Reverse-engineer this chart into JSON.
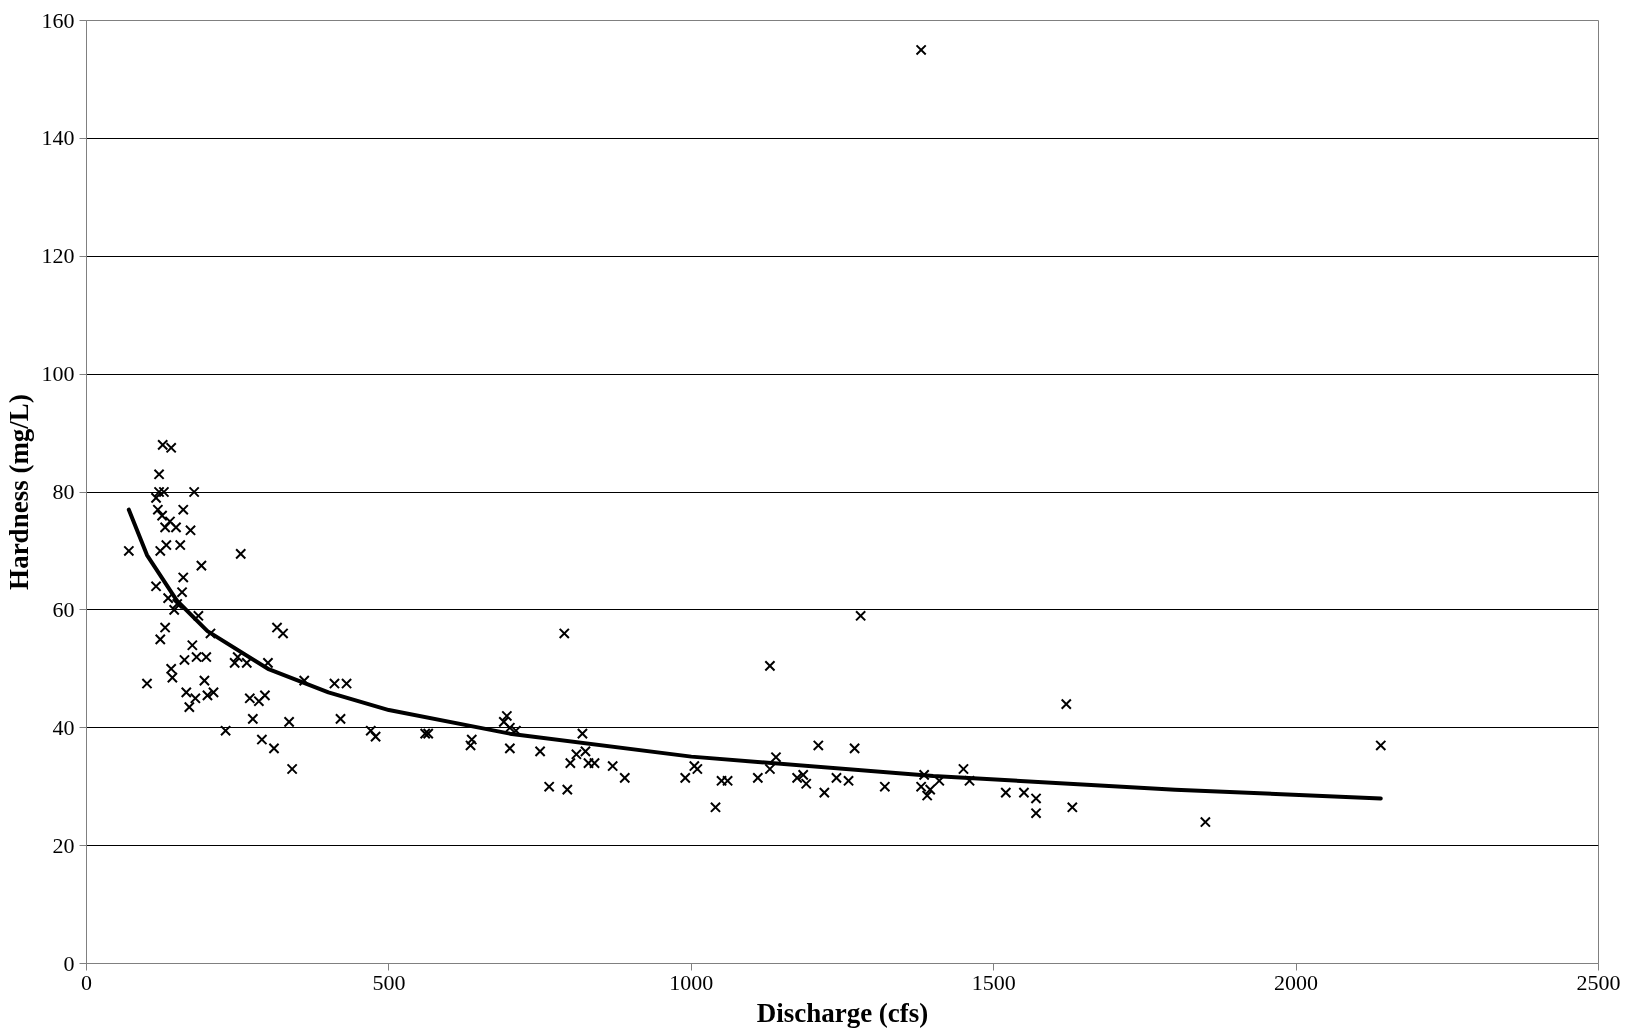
{
  "chart_data": {
    "type": "scatter",
    "xlabel": "Discharge (cfs)",
    "ylabel": "Hardness (mg/L)",
    "xlim": [
      0,
      2500
    ],
    "xticks": [
      0,
      500,
      1000,
      1500,
      2000,
      2500
    ],
    "ylim": [
      0,
      160
    ],
    "yticks": [
      0,
      20,
      40,
      60,
      80,
      100,
      120,
      140,
      160
    ],
    "grid": "y",
    "series": [
      {
        "color": "#000000",
        "marker": "cross",
        "x": [
          70,
          100,
          115,
          115,
          118,
          120,
          120,
          122,
          122,
          125,
          126,
          128,
          130,
          130,
          132,
          135,
          138,
          140,
          140,
          142,
          145,
          148,
          150,
          155,
          158,
          160,
          160,
          162,
          165,
          170,
          172,
          175,
          178,
          180,
          182,
          185,
          190,
          195,
          198,
          200,
          205,
          210,
          230,
          245,
          250,
          255,
          265,
          270,
          275,
          285,
          290,
          295,
          300,
          310,
          315,
          325,
          335,
          340,
          360,
          410,
          420,
          430,
          470,
          478,
          560,
          565,
          635,
          637,
          690,
          695,
          700,
          700,
          710,
          750,
          765,
          790,
          795,
          800,
          810,
          820,
          825,
          830,
          840,
          870,
          890,
          990,
          1005,
          1010,
          1040,
          1050,
          1060,
          1110,
          1130,
          1130,
          1140,
          1175,
          1185,
          1190,
          1210,
          1220,
          1240,
          1260,
          1270,
          1280,
          1320,
          1380,
          1380,
          1385,
          1390,
          1395,
          1410,
          1450,
          1460,
          1520,
          1550,
          1570,
          1570,
          1620,
          1630,
          1850,
          2140
        ],
        "values": [
          70,
          47.5,
          79,
          64,
          77,
          83,
          80,
          55,
          70,
          76,
          88,
          80,
          74,
          57,
          71,
          62,
          75,
          87.5,
          50,
          48.5,
          60,
          74,
          61,
          71,
          63,
          77,
          65.5,
          51.5,
          46,
          43.5,
          73.5,
          54,
          80,
          45,
          52,
          59,
          67.5,
          48,
          52,
          45.5,
          56,
          46,
          39.5,
          51,
          52,
          69.5,
          51,
          45,
          41.5,
          44.5,
          38,
          45.5,
          51,
          36.5,
          57,
          56,
          41,
          33,
          48,
          47.5,
          41.5,
          47.5,
          39.5,
          38.5,
          39,
          39,
          37,
          38,
          41,
          42,
          40,
          36.5,
          39.5,
          36,
          30,
          56,
          29.5,
          34,
          35.5,
          39,
          36,
          34,
          34,
          33.5,
          31.5,
          31.5,
          33.5,
          33,
          26.5,
          31,
          31,
          31.5,
          50.5,
          33,
          35,
          31.5,
          32,
          30.5,
          37,
          29,
          31.5,
          31,
          36.5,
          59,
          30,
          155,
          30,
          32,
          28.5,
          29.5,
          31,
          33,
          31,
          29,
          29,
          25.5,
          28,
          44,
          26.5,
          24,
          37
        ]
      },
      {
        "type": "line",
        "color": "#000000",
        "line_style": "solid",
        "x": [
          70,
          100,
          150,
          200,
          300,
          400,
          500,
          700,
          1000,
          1400,
          1800,
          2140
        ],
        "values": [
          77,
          69.3,
          61.5,
          56.4,
          50,
          46,
          43,
          39,
          35.1,
          31.8,
          29.5,
          28
        ]
      }
    ]
  }
}
